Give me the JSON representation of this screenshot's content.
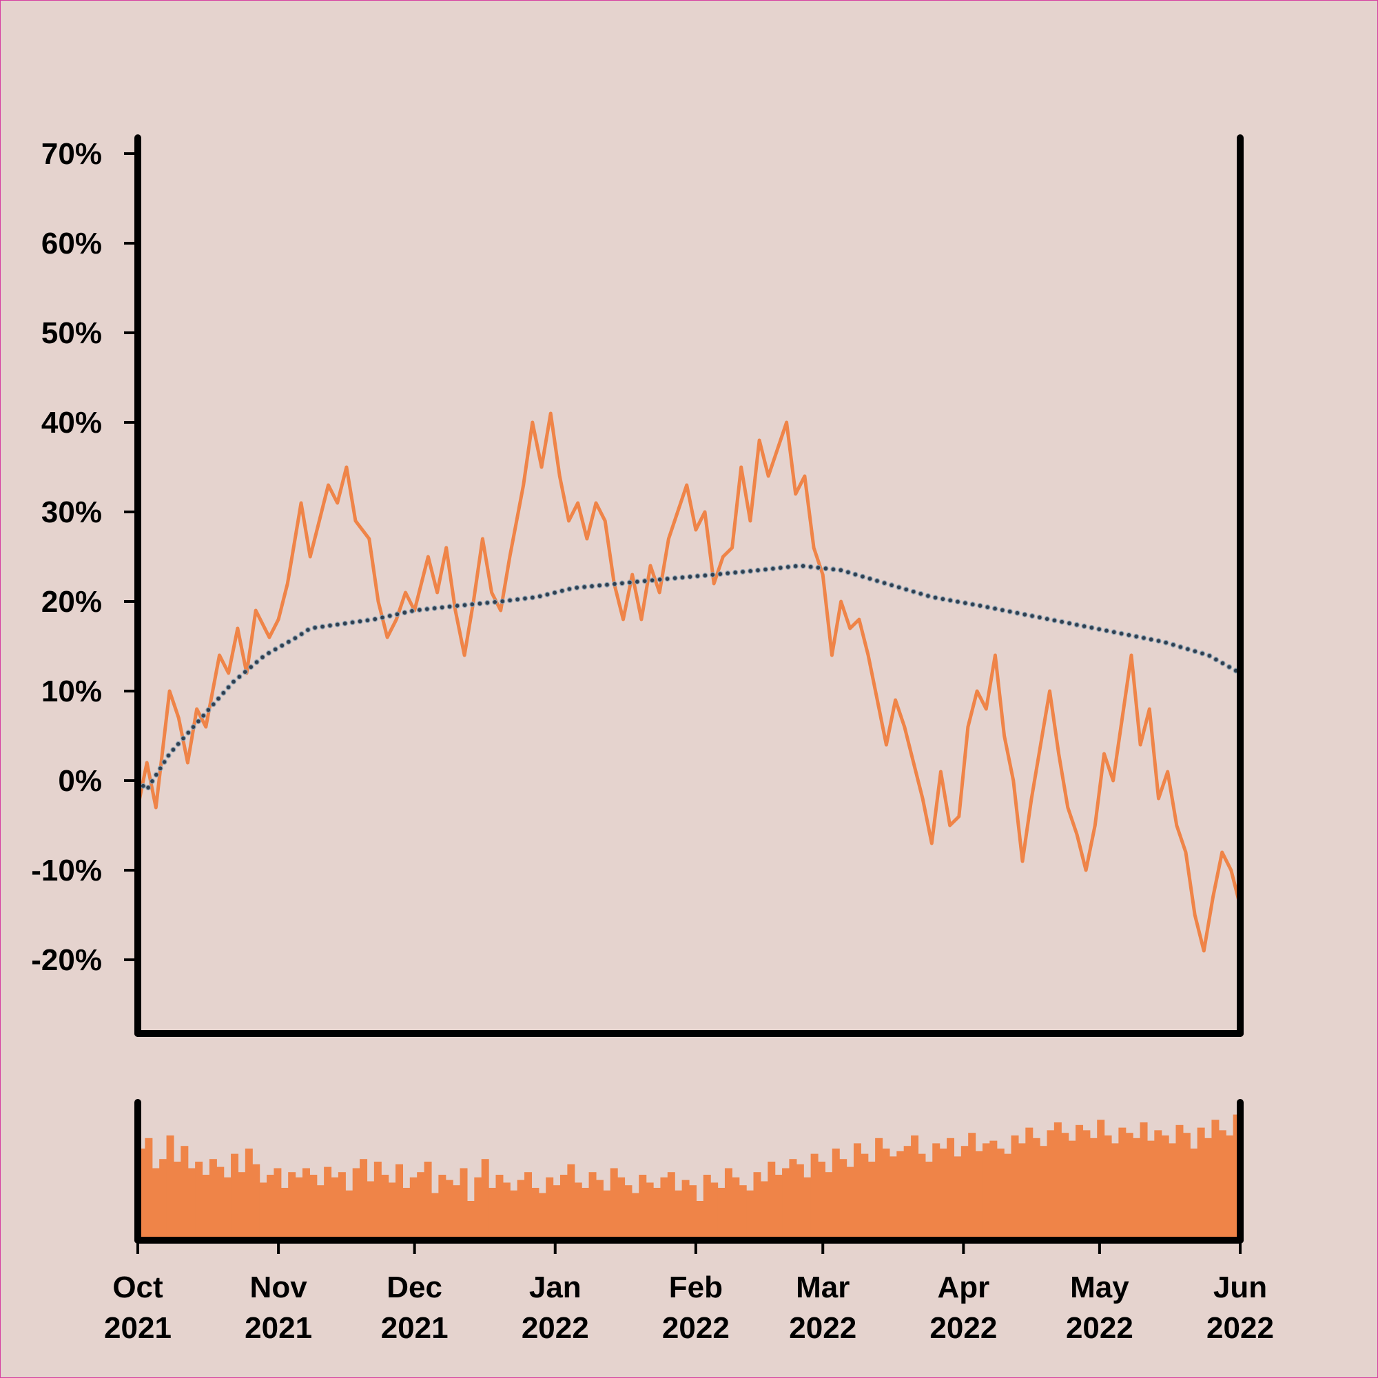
{
  "chart_data": {
    "type": "line",
    "title": "",
    "xlabel": "",
    "ylabel": "",
    "x_range": [
      "2021-10-01",
      "2022-06-01"
    ],
    "ylim": [
      -0.28,
      0.72
    ],
    "y_format": "percent",
    "y_ticks": [
      "70%",
      "60%",
      "50%",
      "40%",
      "30%",
      "20%",
      "10%",
      "0%",
      "-10%",
      "-20%"
    ],
    "y_tick_values": [
      0.7,
      0.6,
      0.5,
      0.4,
      0.3,
      0.2,
      0.1,
      0.0,
      -0.1,
      -0.2
    ],
    "x_ticks": [
      {
        "date": "2021-10-01",
        "month": "Oct",
        "year": "2021"
      },
      {
        "date": "2021-11-01",
        "month": "Nov",
        "year": "2021"
      },
      {
        "date": "2021-12-01",
        "month": "Dec",
        "year": "2021"
      },
      {
        "date": "2022-01-01",
        "month": "Jan",
        "year": "2022"
      },
      {
        "date": "2022-02-01",
        "month": "Feb",
        "year": "2022"
      },
      {
        "date": "2022-03-01",
        "month": "Mar",
        "year": "2022"
      },
      {
        "date": "2022-04-01",
        "month": "Apr",
        "year": "2022"
      },
      {
        "date": "2022-05-01",
        "month": "May",
        "year": "2022"
      },
      {
        "date": "2022-06-01",
        "month": "Jun",
        "year": "2022"
      }
    ],
    "grid": false,
    "legend": "none",
    "series": [
      {
        "style": "solid line",
        "color": "#ef8448",
        "points": [
          [
            "2021-10-01",
            -0.03
          ],
          [
            "2021-10-03",
            0.02
          ],
          [
            "2021-10-05",
            -0.03
          ],
          [
            "2021-10-08",
            0.1
          ],
          [
            "2021-10-10",
            0.07
          ],
          [
            "2021-10-12",
            0.02
          ],
          [
            "2021-10-14",
            0.08
          ],
          [
            "2021-10-16",
            0.06
          ],
          [
            "2021-10-19",
            0.14
          ],
          [
            "2021-10-21",
            0.12
          ],
          [
            "2021-10-23",
            0.17
          ],
          [
            "2021-10-25",
            0.12
          ],
          [
            "2021-10-27",
            0.19
          ],
          [
            "2021-10-30",
            0.16
          ],
          [
            "2021-11-01",
            0.18
          ],
          [
            "2021-11-03",
            0.22
          ],
          [
            "2021-11-06",
            0.31
          ],
          [
            "2021-11-08",
            0.25
          ],
          [
            "2021-11-10",
            0.29
          ],
          [
            "2021-11-12",
            0.33
          ],
          [
            "2021-11-14",
            0.31
          ],
          [
            "2021-11-16",
            0.35
          ],
          [
            "2021-11-18",
            0.29
          ],
          [
            "2021-11-21",
            0.27
          ],
          [
            "2021-11-23",
            0.2
          ],
          [
            "2021-11-25",
            0.16
          ],
          [
            "2021-11-27",
            0.18
          ],
          [
            "2021-11-29",
            0.21
          ],
          [
            "2021-12-01",
            0.19
          ],
          [
            "2021-12-04",
            0.25
          ],
          [
            "2021-12-06",
            0.21
          ],
          [
            "2021-12-08",
            0.26
          ],
          [
            "2021-12-10",
            0.19
          ],
          [
            "2021-12-12",
            0.14
          ],
          [
            "2021-12-14",
            0.2
          ],
          [
            "2021-12-16",
            0.27
          ],
          [
            "2021-12-18",
            0.21
          ],
          [
            "2021-12-20",
            0.19
          ],
          [
            "2021-12-22",
            0.25
          ],
          [
            "2021-12-25",
            0.33
          ],
          [
            "2021-12-27",
            0.4
          ],
          [
            "2021-12-29",
            0.35
          ],
          [
            "2021-12-31",
            0.41
          ],
          [
            "2022-01-02",
            0.34
          ],
          [
            "2022-01-04",
            0.29
          ],
          [
            "2022-01-06",
            0.31
          ],
          [
            "2022-01-08",
            0.27
          ],
          [
            "2022-01-10",
            0.31
          ],
          [
            "2022-01-12",
            0.29
          ],
          [
            "2022-01-14",
            0.22
          ],
          [
            "2022-01-16",
            0.18
          ],
          [
            "2022-01-18",
            0.23
          ],
          [
            "2022-01-20",
            0.18
          ],
          [
            "2022-01-22",
            0.24
          ],
          [
            "2022-01-24",
            0.21
          ],
          [
            "2022-01-26",
            0.27
          ],
          [
            "2022-01-28",
            0.3
          ],
          [
            "2022-01-30",
            0.33
          ],
          [
            "2022-02-01",
            0.28
          ],
          [
            "2022-02-03",
            0.3
          ],
          [
            "2022-02-05",
            0.22
          ],
          [
            "2022-02-07",
            0.25
          ],
          [
            "2022-02-09",
            0.26
          ],
          [
            "2022-02-11",
            0.35
          ],
          [
            "2022-02-13",
            0.29
          ],
          [
            "2022-02-15",
            0.38
          ],
          [
            "2022-02-17",
            0.34
          ],
          [
            "2022-02-19",
            0.37
          ],
          [
            "2022-02-21",
            0.4
          ],
          [
            "2022-02-23",
            0.32
          ],
          [
            "2022-02-25",
            0.34
          ],
          [
            "2022-02-27",
            0.26
          ],
          [
            "2022-03-01",
            0.23
          ],
          [
            "2022-03-03",
            0.14
          ],
          [
            "2022-03-05",
            0.2
          ],
          [
            "2022-03-07",
            0.17
          ],
          [
            "2022-03-09",
            0.18
          ],
          [
            "2022-03-11",
            0.14
          ],
          [
            "2022-03-13",
            0.09
          ],
          [
            "2022-03-15",
            0.04
          ],
          [
            "2022-03-17",
            0.09
          ],
          [
            "2022-03-19",
            0.06
          ],
          [
            "2022-03-21",
            0.02
          ],
          [
            "2022-03-23",
            -0.02
          ],
          [
            "2022-03-25",
            -0.07
          ],
          [
            "2022-03-27",
            0.01
          ],
          [
            "2022-03-29",
            -0.05
          ],
          [
            "2022-03-31",
            -0.04
          ],
          [
            "2022-04-02",
            0.06
          ],
          [
            "2022-04-04",
            0.1
          ],
          [
            "2022-04-06",
            0.08
          ],
          [
            "2022-04-08",
            0.14
          ],
          [
            "2022-04-10",
            0.05
          ],
          [
            "2022-04-12",
            0.0
          ],
          [
            "2022-04-14",
            -0.09
          ],
          [
            "2022-04-16",
            -0.02
          ],
          [
            "2022-04-18",
            0.04
          ],
          [
            "2022-04-20",
            0.1
          ],
          [
            "2022-04-22",
            0.03
          ],
          [
            "2022-04-24",
            -0.03
          ],
          [
            "2022-04-26",
            -0.06
          ],
          [
            "2022-04-28",
            -0.1
          ],
          [
            "2022-04-30",
            -0.05
          ],
          [
            "2022-05-02",
            0.03
          ],
          [
            "2022-05-04",
            0.0
          ],
          [
            "2022-05-06",
            0.07
          ],
          [
            "2022-05-08",
            0.14
          ],
          [
            "2022-05-10",
            0.04
          ],
          [
            "2022-05-12",
            0.08
          ],
          [
            "2022-05-14",
            -0.02
          ],
          [
            "2022-05-16",
            0.01
          ],
          [
            "2022-05-18",
            -0.05
          ],
          [
            "2022-05-20",
            -0.08
          ],
          [
            "2022-05-22",
            -0.15
          ],
          [
            "2022-05-24",
            -0.19
          ],
          [
            "2022-05-26",
            -0.13
          ],
          [
            "2022-05-28",
            -0.08
          ],
          [
            "2022-05-30",
            -0.1
          ],
          [
            "2022-06-01",
            -0.14
          ]
        ]
      },
      {
        "style": "dotted line",
        "color": "#2f3f50",
        "points": [
          [
            "2021-10-01",
            0.0
          ],
          [
            "2021-10-03",
            -0.01
          ],
          [
            "2021-10-08",
            0.03
          ],
          [
            "2021-10-15",
            0.07
          ],
          [
            "2021-10-22",
            0.11
          ],
          [
            "2021-10-29",
            0.14
          ],
          [
            "2021-11-05",
            0.16
          ],
          [
            "2021-11-08",
            0.17
          ],
          [
            "2021-11-15",
            0.175
          ],
          [
            "2021-11-22",
            0.18
          ],
          [
            "2021-12-01",
            0.19
          ],
          [
            "2021-12-10",
            0.195
          ],
          [
            "2021-12-20",
            0.2
          ],
          [
            "2021-12-28",
            0.205
          ],
          [
            "2022-01-05",
            0.215
          ],
          [
            "2022-01-15",
            0.22
          ],
          [
            "2022-01-25",
            0.225
          ],
          [
            "2022-02-05",
            0.23
          ],
          [
            "2022-02-15",
            0.235
          ],
          [
            "2022-02-24",
            0.24
          ],
          [
            "2022-03-05",
            0.235
          ],
          [
            "2022-03-15",
            0.22
          ],
          [
            "2022-03-25",
            0.205
          ],
          [
            "2022-04-05",
            0.195
          ],
          [
            "2022-04-15",
            0.185
          ],
          [
            "2022-04-25",
            0.175
          ],
          [
            "2022-05-05",
            0.165
          ],
          [
            "2022-05-15",
            0.155
          ],
          [
            "2022-05-25",
            0.14
          ],
          [
            "2022-06-01",
            0.12
          ]
        ]
      }
    ],
    "volume_panel": {
      "type": "bar",
      "color": "#ef8448",
      "values": [
        0.7,
        0.78,
        0.55,
        0.62,
        0.8,
        0.6,
        0.72,
        0.55,
        0.6,
        0.5,
        0.62,
        0.56,
        0.48,
        0.66,
        0.52,
        0.7,
        0.58,
        0.44,
        0.5,
        0.55,
        0.4,
        0.52,
        0.48,
        0.55,
        0.5,
        0.42,
        0.56,
        0.48,
        0.52,
        0.38,
        0.55,
        0.62,
        0.45,
        0.6,
        0.5,
        0.44,
        0.58,
        0.4,
        0.48,
        0.52,
        0.6,
        0.36,
        0.5,
        0.46,
        0.42,
        0.55,
        0.3,
        0.48,
        0.62,
        0.4,
        0.5,
        0.44,
        0.38,
        0.46,
        0.52,
        0.4,
        0.36,
        0.48,
        0.42,
        0.5,
        0.58,
        0.44,
        0.4,
        0.52,
        0.46,
        0.38,
        0.55,
        0.48,
        0.42,
        0.36,
        0.5,
        0.44,
        0.4,
        0.48,
        0.52,
        0.38,
        0.46,
        0.42,
        0.3,
        0.5,
        0.44,
        0.4,
        0.55,
        0.48,
        0.42,
        0.38,
        0.52,
        0.45,
        0.6,
        0.5,
        0.55,
        0.62,
        0.58,
        0.48,
        0.66,
        0.6,
        0.52,
        0.7,
        0.62,
        0.56,
        0.74,
        0.66,
        0.6,
        0.78,
        0.7,
        0.64,
        0.68,
        0.72,
        0.8,
        0.66,
        0.6,
        0.74,
        0.7,
        0.78,
        0.64,
        0.72,
        0.82,
        0.68,
        0.74,
        0.76,
        0.7,
        0.66,
        0.8,
        0.74,
        0.86,
        0.78,
        0.72,
        0.84,
        0.9,
        0.82,
        0.76,
        0.88,
        0.84,
        0.78,
        0.92,
        0.8,
        0.74,
        0.86,
        0.82,
        0.78,
        0.9,
        0.76,
        0.84,
        0.8,
        0.74,
        0.88,
        0.82,
        0.7,
        0.86,
        0.78,
        0.92,
        0.84,
        0.8,
        0.96
      ]
    }
  }
}
